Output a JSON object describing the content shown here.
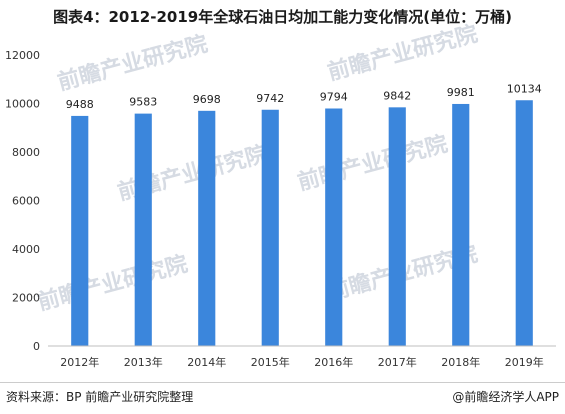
{
  "chart_data": {
    "type": "bar",
    "title": "图表4：2012-2019年全球石油日均加工能力变化情况(单位：万桶)",
    "xlabel": "",
    "ylabel": "",
    "categories": [
      "2012年",
      "2013年",
      "2014年",
      "2015年",
      "2016年",
      "2017年",
      "2018年",
      "2019年"
    ],
    "values": [
      9488,
      9583,
      9698,
      9742,
      9794,
      9842,
      9981,
      10134
    ],
    "data_labels": [
      "9488",
      "9583",
      "9698",
      "9742",
      "9794",
      "9842",
      "9981",
      "10134"
    ],
    "ylim": [
      0,
      12000
    ],
    "yticks": [
      0,
      2000,
      4000,
      6000,
      8000,
      10000,
      12000
    ],
    "ytick_labels": [
      "0",
      "2000",
      "4000",
      "6000",
      "8000",
      "10000",
      "12000"
    ],
    "grid": false,
    "bar_color": "#3b86dc"
  },
  "footer": {
    "source": "资料来源：BP  前瞻产业研究院整理",
    "brand": "@前瞻经济学人APP"
  },
  "watermark": {
    "text": "前瞻产业研究院"
  }
}
